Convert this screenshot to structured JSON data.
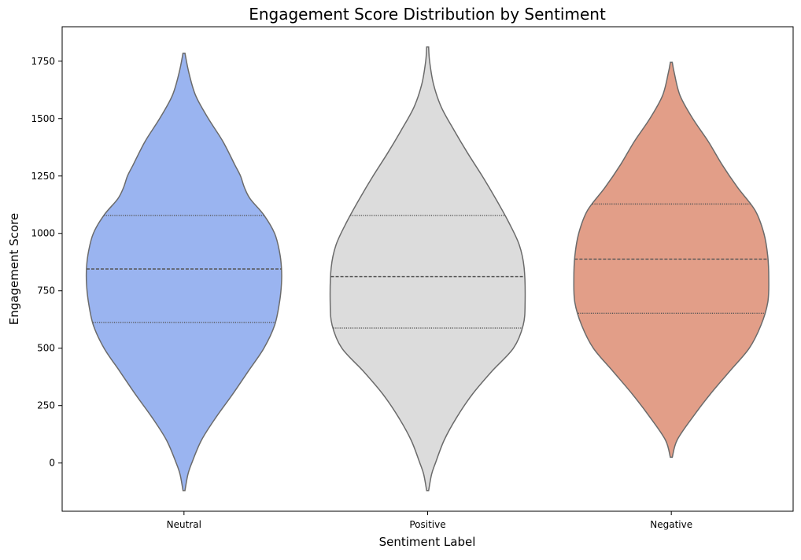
{
  "chart_data": {
    "type": "violin",
    "title": "Engagement Score Distribution by Sentiment",
    "xlabel": "Sentiment Label",
    "ylabel": "Engagement Score",
    "ylim": [
      -210,
      1900
    ],
    "yticks": [
      0,
      250,
      500,
      750,
      1000,
      1250,
      1500,
      1750
    ],
    "grid": false,
    "inner": "quartile",
    "palette": "coolwarm",
    "categories": [
      "Neutral",
      "Positive",
      "Negative"
    ],
    "series": [
      {
        "category": "Neutral",
        "color": "#9ab4f0",
        "min": -120,
        "max": 1785,
        "q1": 612,
        "median": 845,
        "q3": 1078,
        "density": [
          [
            -120,
            0.01
          ],
          [
            -50,
            0.04
          ],
          [
            0,
            0.08
          ],
          [
            100,
            0.18
          ],
          [
            200,
            0.33
          ],
          [
            300,
            0.5
          ],
          [
            400,
            0.66
          ],
          [
            500,
            0.82
          ],
          [
            600,
            0.93
          ],
          [
            700,
            0.98
          ],
          [
            780,
            1.0
          ],
          [
            850,
            1.0
          ],
          [
            920,
            0.98
          ],
          [
            1000,
            0.93
          ],
          [
            1080,
            0.82
          ],
          [
            1150,
            0.68
          ],
          [
            1200,
            0.62
          ],
          [
            1250,
            0.58
          ],
          [
            1300,
            0.52
          ],
          [
            1400,
            0.4
          ],
          [
            1500,
            0.25
          ],
          [
            1600,
            0.12
          ],
          [
            1700,
            0.05
          ],
          [
            1785,
            0.01
          ]
        ]
      },
      {
        "category": "Positive",
        "color": "#dcdcdc",
        "min": -120,
        "max": 1812,
        "q1": 588,
        "median": 812,
        "q3": 1078,
        "density": [
          [
            -120,
            0.01
          ],
          [
            -50,
            0.04
          ],
          [
            0,
            0.08
          ],
          [
            100,
            0.17
          ],
          [
            200,
            0.3
          ],
          [
            300,
            0.46
          ],
          [
            400,
            0.66
          ],
          [
            500,
            0.88
          ],
          [
            600,
            0.98
          ],
          [
            700,
            1.0
          ],
          [
            850,
            0.99
          ],
          [
            950,
            0.94
          ],
          [
            1050,
            0.83
          ],
          [
            1150,
            0.7
          ],
          [
            1250,
            0.56
          ],
          [
            1350,
            0.41
          ],
          [
            1450,
            0.27
          ],
          [
            1550,
            0.14
          ],
          [
            1650,
            0.06
          ],
          [
            1750,
            0.02
          ],
          [
            1812,
            0.01
          ]
        ]
      },
      {
        "category": "Negative",
        "color": "#e29e88",
        "min": 25,
        "max": 1745,
        "q1": 652,
        "median": 888,
        "q3": 1128,
        "density": [
          [
            25,
            0.01
          ],
          [
            100,
            0.06
          ],
          [
            200,
            0.22
          ],
          [
            300,
            0.4
          ],
          [
            400,
            0.6
          ],
          [
            500,
            0.8
          ],
          [
            600,
            0.92
          ],
          [
            700,
            0.99
          ],
          [
            800,
            1.0
          ],
          [
            900,
            0.99
          ],
          [
            1000,
            0.95
          ],
          [
            1100,
            0.86
          ],
          [
            1200,
            0.68
          ],
          [
            1300,
            0.52
          ],
          [
            1400,
            0.38
          ],
          [
            1500,
            0.22
          ],
          [
            1600,
            0.09
          ],
          [
            1700,
            0.03
          ],
          [
            1745,
            0.01
          ]
        ]
      }
    ]
  }
}
